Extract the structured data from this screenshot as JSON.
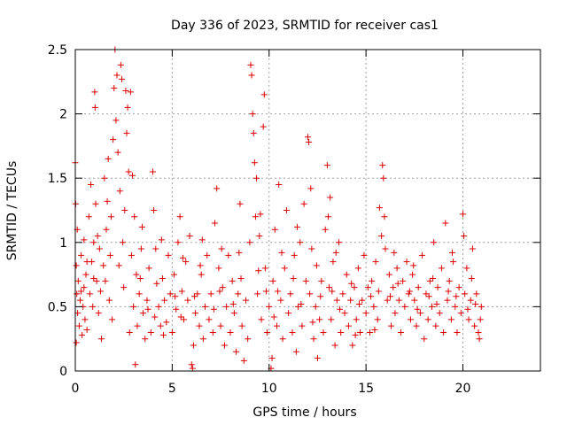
{
  "chart_data": {
    "type": "scatter",
    "title": "Day 336 of 2023, SRMTID for receiver cas1",
    "xlabel": "GPS time / hours",
    "ylabel": "SRMTID / TECUs",
    "xlim": [
      0,
      24
    ],
    "ylim": [
      0,
      2.5
    ],
    "xticks": [
      0,
      5,
      10,
      15,
      20
    ],
    "yticks": [
      0,
      0.5,
      1,
      1.5,
      2,
      2.5
    ],
    "xtick_labels": [
      "0",
      "5",
      "10",
      "15",
      "20"
    ],
    "ytick_labels": [
      "0",
      "0.5",
      "1",
      "1.5",
      "2",
      "2.5"
    ],
    "grid": true,
    "marker": "+",
    "series": [
      {
        "name": "SRMTID",
        "color": "#dd0000",
        "points": [
          [
            0.0,
            1.62
          ],
          [
            0.02,
            1.3
          ],
          [
            0.05,
            0.82
          ],
          [
            0.08,
            0.6
          ],
          [
            0.1,
            1.1
          ],
          [
            0.12,
            0.45
          ],
          [
            0.15,
            0.7
          ],
          [
            0.2,
            0.35
          ],
          [
            0.25,
            0.55
          ],
          [
            0.3,
            0.9
          ],
          [
            0.35,
            0.28
          ],
          [
            0.4,
            0.5
          ],
          [
            0.45,
            0.65
          ],
          [
            0.5,
            0.4
          ],
          [
            0.55,
            0.75
          ],
          [
            0.6,
            0.32
          ],
          [
            0.7,
            1.2
          ],
          [
            0.75,
            0.6
          ],
          [
            0.8,
            1.45
          ],
          [
            0.85,
            0.85
          ],
          [
            0.9,
            0.5
          ],
          [
            0.95,
            1.0
          ],
          [
            1.0,
            2.17
          ],
          [
            1.02,
            2.05
          ],
          [
            1.05,
            1.3
          ],
          [
            1.1,
            0.7
          ],
          [
            1.15,
            1.05
          ],
          [
            1.2,
            0.45
          ],
          [
            1.3,
            0.62
          ],
          [
            1.35,
            0.25
          ],
          [
            1.45,
            0.82
          ],
          [
            1.5,
            1.5
          ],
          [
            1.6,
            1.1
          ],
          [
            1.7,
            1.65
          ],
          [
            1.75,
            0.55
          ],
          [
            1.8,
            0.9
          ],
          [
            1.85,
            1.2
          ],
          [
            1.9,
            0.4
          ],
          [
            1.95,
            1.8
          ],
          [
            2.0,
            2.2
          ],
          [
            2.05,
            2.5
          ],
          [
            2.1,
            1.95
          ],
          [
            2.15,
            2.3
          ],
          [
            2.2,
            1.7
          ],
          [
            2.3,
            1.4
          ],
          [
            2.35,
            2.38
          ],
          [
            2.4,
            2.27
          ],
          [
            2.45,
            1.0
          ],
          [
            2.5,
            0.65
          ],
          [
            2.6,
            2.18
          ],
          [
            2.65,
            1.85
          ],
          [
            2.7,
            2.05
          ],
          [
            2.75,
            1.55
          ],
          [
            2.8,
            0.3
          ],
          [
            2.85,
            2.17
          ],
          [
            2.9,
            0.9
          ],
          [
            3.0,
            0.5
          ],
          [
            3.05,
            1.2
          ],
          [
            3.1,
            0.05
          ],
          [
            3.15,
            0.75
          ],
          [
            3.2,
            0.35
          ],
          [
            3.3,
            0.6
          ],
          [
            3.4,
            0.95
          ],
          [
            3.5,
            0.45
          ],
          [
            3.6,
            0.25
          ],
          [
            3.7,
            0.55
          ],
          [
            3.8,
            0.8
          ],
          [
            3.9,
            0.3
          ],
          [
            4.0,
            1.55
          ],
          [
            4.05,
            1.25
          ],
          [
            4.1,
            0.42
          ],
          [
            4.2,
            0.68
          ],
          [
            4.3,
            0.5
          ],
          [
            4.4,
            0.35
          ],
          [
            4.5,
            0.72
          ],
          [
            4.6,
            0.55
          ],
          [
            4.7,
            0.38
          ],
          [
            4.8,
            0.9
          ],
          [
            4.9,
            0.6
          ],
          [
            5.0,
            0.3
          ],
          [
            5.1,
            0.75
          ],
          [
            5.2,
            0.48
          ],
          [
            5.3,
            1.0
          ],
          [
            5.4,
            1.2
          ],
          [
            5.5,
            0.62
          ],
          [
            5.6,
            0.4
          ],
          [
            5.7,
            0.85
          ],
          [
            5.8,
            0.55
          ],
          [
            5.9,
            1.05
          ],
          [
            6.0,
            0.05
          ],
          [
            6.05,
            0.02
          ],
          [
            6.1,
            0.2
          ],
          [
            6.2,
            0.45
          ],
          [
            6.3,
            0.6
          ],
          [
            6.4,
            0.35
          ],
          [
            6.5,
            0.75
          ],
          [
            6.6,
            0.25
          ],
          [
            6.7,
            0.5
          ],
          [
            6.8,
            0.9
          ],
          [
            6.9,
            0.4
          ],
          [
            7.0,
            0.6
          ],
          [
            7.1,
            0.3
          ],
          [
            7.2,
            1.15
          ],
          [
            7.3,
            1.42
          ],
          [
            7.4,
            0.8
          ],
          [
            7.5,
            0.35
          ],
          [
            7.6,
            0.65
          ],
          [
            7.7,
            0.2
          ],
          [
            7.8,
            0.5
          ],
          [
            7.9,
            0.9
          ],
          [
            8.0,
            0.3
          ],
          [
            8.1,
            0.7
          ],
          [
            8.2,
            0.45
          ],
          [
            8.3,
            0.15
          ],
          [
            8.4,
            0.6
          ],
          [
            8.5,
            1.3
          ],
          [
            8.6,
            0.35
          ],
          [
            8.7,
            0.08
          ],
          [
            8.8,
            0.55
          ],
          [
            8.9,
            0.25
          ],
          [
            9.0,
            1.0
          ],
          [
            9.05,
            2.38
          ],
          [
            9.1,
            2.3
          ],
          [
            9.15,
            2.0
          ],
          [
            9.2,
            1.85
          ],
          [
            9.3,
            1.2
          ],
          [
            9.35,
            1.5
          ],
          [
            9.4,
            0.6
          ],
          [
            9.5,
            1.05
          ],
          [
            9.6,
            0.4
          ],
          [
            9.7,
            1.9
          ],
          [
            9.75,
            2.15
          ],
          [
            9.8,
            0.8
          ],
          [
            9.9,
            0.3
          ],
          [
            10.0,
            0.5
          ],
          [
            10.1,
            0.02
          ],
          [
            10.2,
            0.7
          ],
          [
            10.3,
            1.1
          ],
          [
            10.4,
            0.35
          ],
          [
            10.5,
            1.45
          ],
          [
            10.6,
            0.55
          ],
          [
            10.7,
            0.25
          ],
          [
            10.8,
            0.8
          ],
          [
            10.9,
            1.25
          ],
          [
            11.0,
            0.45
          ],
          [
            11.1,
            0.6
          ],
          [
            11.2,
            0.3
          ],
          [
            11.3,
            0.9
          ],
          [
            11.4,
            0.15
          ],
          [
            11.5,
            0.5
          ],
          [
            11.6,
            1.0
          ],
          [
            11.7,
            0.35
          ],
          [
            11.8,
            1.3
          ],
          [
            11.9,
            0.7
          ],
          [
            12.0,
            1.82
          ],
          [
            12.05,
            1.78
          ],
          [
            12.1,
            0.6
          ],
          [
            12.2,
            0.95
          ],
          [
            12.3,
            0.25
          ],
          [
            12.4,
            0.5
          ],
          [
            12.5,
            0.1
          ],
          [
            12.6,
            0.4
          ],
          [
            12.7,
            0.7
          ],
          [
            12.8,
            0.3
          ],
          [
            12.9,
            1.1
          ],
          [
            13.0,
            1.6
          ],
          [
            13.05,
            1.2
          ],
          [
            13.1,
            0.65
          ],
          [
            13.2,
            0.4
          ],
          [
            13.3,
            0.85
          ],
          [
            13.4,
            0.2
          ],
          [
            13.5,
            0.55
          ],
          [
            13.6,
            1.0
          ],
          [
            13.7,
            0.3
          ],
          [
            13.8,
            0.6
          ],
          [
            13.9,
            0.45
          ],
          [
            14.0,
            0.75
          ],
          [
            14.1,
            0.35
          ],
          [
            14.2,
            0.55
          ],
          [
            14.3,
            0.2
          ],
          [
            14.4,
            0.65
          ],
          [
            14.5,
            0.4
          ],
          [
            14.6,
            0.8
          ],
          [
            14.7,
            0.3
          ],
          [
            14.8,
            0.55
          ],
          [
            14.9,
            0.9
          ],
          [
            15.0,
            0.45
          ],
          [
            15.1,
            0.65
          ],
          [
            15.2,
            0.3
          ],
          [
            15.3,
            0.7
          ],
          [
            15.4,
            0.5
          ],
          [
            15.5,
            0.85
          ],
          [
            15.6,
            0.4
          ],
          [
            15.7,
            1.27
          ],
          [
            15.8,
            1.05
          ],
          [
            15.85,
            1.6
          ],
          [
            15.9,
            1.5
          ],
          [
            16.0,
            0.95
          ],
          [
            16.1,
            0.55
          ],
          [
            16.2,
            0.75
          ],
          [
            16.3,
            0.35
          ],
          [
            16.4,
            0.65
          ],
          [
            16.5,
            0.45
          ],
          [
            16.6,
            0.8
          ],
          [
            16.7,
            0.55
          ],
          [
            16.8,
            0.3
          ],
          [
            16.9,
            0.7
          ],
          [
            17.0,
            0.5
          ],
          [
            17.1,
            0.85
          ],
          [
            17.2,
            0.6
          ],
          [
            17.3,
            0.4
          ],
          [
            17.4,
            0.75
          ],
          [
            17.5,
            0.55
          ],
          [
            17.6,
            0.35
          ],
          [
            17.7,
            0.65
          ],
          [
            17.8,
            0.45
          ],
          [
            17.9,
            0.9
          ],
          [
            18.0,
            0.25
          ],
          [
            18.1,
            0.6
          ],
          [
            18.2,
            0.4
          ],
          [
            18.3,
            0.7
          ],
          [
            18.4,
            0.5
          ],
          [
            18.5,
            1.0
          ],
          [
            18.6,
            0.35
          ],
          [
            18.7,
            0.65
          ],
          [
            18.8,
            0.45
          ],
          [
            18.9,
            0.8
          ],
          [
            19.0,
            0.3
          ],
          [
            19.1,
            1.15
          ],
          [
            19.2,
            0.55
          ],
          [
            19.3,
            0.7
          ],
          [
            19.4,
            0.4
          ],
          [
            19.5,
            0.85
          ],
          [
            19.6,
            0.5
          ],
          [
            19.7,
            0.3
          ],
          [
            19.8,
            0.65
          ],
          [
            19.9,
            0.45
          ],
          [
            20.0,
            1.22
          ],
          [
            20.05,
            1.05
          ],
          [
            20.1,
            0.6
          ],
          [
            20.2,
            0.8
          ],
          [
            20.3,
            0.4
          ],
          [
            20.4,
            0.55
          ],
          [
            20.5,
            0.95
          ],
          [
            20.6,
            0.35
          ],
          [
            20.7,
            0.6
          ],
          [
            20.8,
            0.3
          ],
          [
            20.85,
            0.25
          ],
          [
            20.9,
            0.4
          ],
          [
            20.95,
            0.5
          ],
          [
            0.3,
            0.62
          ],
          [
            0.6,
            0.85
          ],
          [
            1.25,
            0.95
          ],
          [
            1.55,
            0.7
          ],
          [
            2.25,
            0.82
          ],
          [
            2.55,
            1.25
          ],
          [
            3.35,
            0.72
          ],
          [
            3.75,
            0.48
          ],
          [
            4.15,
            0.95
          ],
          [
            4.55,
            0.28
          ],
          [
            5.15,
            0.58
          ],
          [
            5.55,
            0.88
          ],
          [
            6.15,
            0.58
          ],
          [
            6.55,
            1.02
          ],
          [
            7.15,
            0.48
          ],
          [
            7.55,
            0.95
          ],
          [
            8.15,
            0.52
          ],
          [
            8.55,
            0.72
          ],
          [
            9.45,
            0.78
          ],
          [
            9.85,
            0.62
          ],
          [
            10.25,
            0.42
          ],
          [
            10.65,
            0.92
          ],
          [
            11.25,
            0.72
          ],
          [
            11.65,
            0.52
          ],
          [
            12.25,
            0.38
          ],
          [
            12.65,
            0.58
          ],
          [
            13.25,
            0.62
          ],
          [
            13.65,
            0.48
          ],
          [
            14.25,
            0.68
          ],
          [
            14.65,
            0.52
          ],
          [
            15.25,
            0.58
          ],
          [
            15.65,
            0.62
          ],
          [
            16.25,
            0.58
          ],
          [
            16.65,
            0.68
          ],
          [
            17.25,
            0.62
          ],
          [
            17.65,
            0.48
          ],
          [
            18.25,
            0.58
          ],
          [
            18.65,
            0.52
          ],
          [
            19.25,
            0.62
          ],
          [
            19.65,
            0.58
          ],
          [
            20.25,
            0.48
          ],
          [
            20.65,
            0.52
          ],
          [
            0.45,
            1.02
          ],
          [
            0.95,
            0.72
          ],
          [
            1.65,
            1.32
          ],
          [
            2.95,
            1.52
          ],
          [
            3.45,
            1.12
          ],
          [
            4.45,
            1.02
          ],
          [
            5.45,
            0.42
          ],
          [
            6.45,
            0.82
          ],
          [
            7.45,
            0.62
          ],
          [
            8.45,
            0.92
          ],
          [
            9.25,
            1.62
          ],
          [
            10.45,
            0.62
          ],
          [
            11.45,
            1.12
          ],
          [
            12.45,
            0.82
          ],
          [
            13.45,
            0.92
          ],
          [
            14.45,
            0.28
          ],
          [
            15.45,
            0.32
          ],
          [
            16.45,
            0.92
          ],
          [
            17.45,
            0.82
          ],
          [
            18.45,
            0.72
          ],
          [
            19.45,
            0.92
          ],
          [
            20.45,
            0.72
          ],
          [
            9.55,
            1.22
          ],
          [
            12.15,
            1.42
          ],
          [
            13.15,
            1.35
          ],
          [
            15.95,
            1.2
          ],
          [
            0.05,
            0.22
          ],
          [
            10.15,
            0.1
          ]
        ]
      }
    ]
  }
}
